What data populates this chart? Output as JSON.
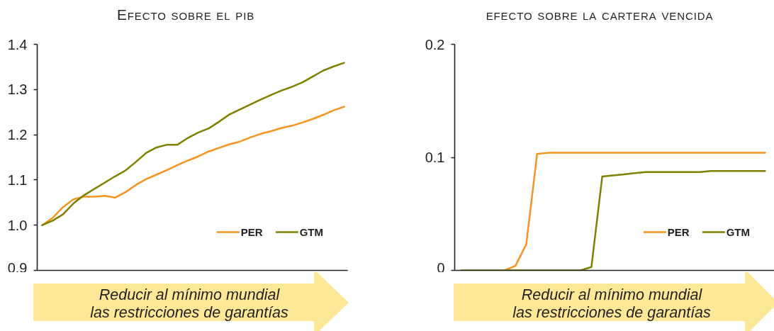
{
  "chart_data": [
    {
      "type": "line",
      "title": "Efecto sobre el pib",
      "categories": [
        null,
        null,
        null,
        null,
        null,
        null,
        null,
        null,
        null,
        null,
        null,
        null,
        null,
        null,
        null,
        null,
        null,
        null,
        null,
        null,
        null,
        null,
        null,
        null,
        null,
        null,
        null,
        null,
        null,
        null
      ],
      "series": [
        {
          "name": "PER",
          "color": "#f7941d",
          "values": [
            1.0,
            1.016,
            1.04,
            1.057,
            1.063,
            1.063,
            1.065,
            1.061,
            1.073,
            1.089,
            1.102,
            1.112,
            1.122,
            1.133,
            1.143,
            1.152,
            1.163,
            1.171,
            1.179,
            1.185,
            1.194,
            1.202,
            1.208,
            1.215,
            1.22,
            1.227,
            1.235,
            1.244,
            1.254,
            1.262
          ]
        },
        {
          "name": "GTM",
          "color": "#808000",
          "values": [
            1.0,
            1.01,
            1.024,
            1.048,
            1.066,
            1.08,
            1.094,
            1.108,
            1.121,
            1.14,
            1.16,
            1.172,
            1.178,
            1.178,
            1.193,
            1.205,
            1.214,
            1.229,
            1.245,
            1.256,
            1.267,
            1.278,
            1.288,
            1.298,
            1.306,
            1.316,
            1.329,
            1.342,
            1.351,
            1.359
          ]
        }
      ],
      "ylim": [
        0.9,
        1.4
      ],
      "yticks": [
        0.9,
        {
          "value": 1,
          "label": "1.0"
        },
        1.1,
        1.2,
        1.3,
        1.4
      ],
      "legend": "bottom right",
      "annotations": [
        "Reducir al mínimo mundial\nlas restricciones de garantías"
      ]
    },
    {
      "type": "line",
      "title": "efecto sobre la cartera vencida",
      "categories": [
        null,
        null,
        null,
        null,
        null,
        null,
        null,
        null,
        null,
        null,
        null,
        null,
        null,
        null,
        null,
        null,
        null,
        null,
        null,
        null,
        null,
        null,
        null,
        null,
        null,
        null,
        null,
        null,
        null
      ],
      "series": [
        {
          "name": "PER",
          "color": "#f7941d",
          "values": [
            null,
            null,
            null,
            null,
            0,
            0.004,
            0.023,
            0.103,
            0.104,
            0.104,
            0.104,
            0.104,
            0.104,
            0.104,
            0.104,
            0.104,
            0.104,
            0.104,
            0.104,
            0.104,
            0.104,
            0.104,
            0.104,
            0.104,
            0.104,
            0.104,
            0.104,
            0.104,
            0.104
          ]
        },
        {
          "name": "GTM",
          "color": "#808000",
          "values": [
            0,
            0,
            0,
            0,
            0,
            0,
            0,
            0,
            0,
            0,
            0,
            0,
            0.003,
            0.083,
            0.084,
            0.085,
            0.086,
            0.087,
            0.087,
            0.087,
            0.087,
            0.087,
            0.087,
            0.088,
            0.088,
            0.088,
            0.088,
            0.088,
            0.088
          ]
        }
      ],
      "ylim": [
        0,
        0.2
      ],
      "yticks": [
        0,
        0.1,
        0.2
      ],
      "legend": "bottom right",
      "annotations": [
        "Reducir al mínimo mundial\nlas restricciones de garantías"
      ]
    }
  ]
}
